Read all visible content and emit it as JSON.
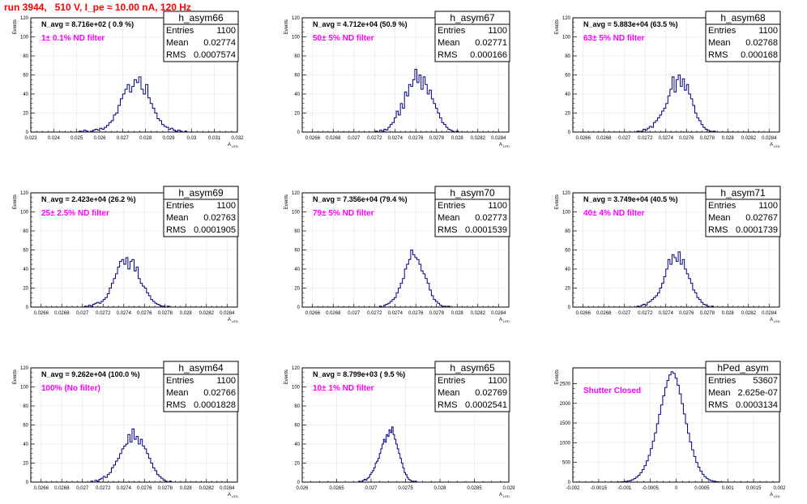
{
  "header": {
    "run_title": "run 3944,   510 V, I_pe ≈ 10.00 nA, 120 Hz"
  },
  "colors": {
    "title": "#ff0000",
    "filter_label": "#ff00ff",
    "hist_line": "#000080",
    "grid": "#c8c8c8"
  },
  "stats_labels": {
    "entries": "Entries",
    "mean": "Mean",
    "rms": "RMS"
  },
  "axis_labels": {
    "y": "Events",
    "x": "A",
    "x_sub": "LED"
  },
  "chart_data": [
    {
      "type": "bar",
      "title": "h_asym66",
      "entries": "1100",
      "mean": "0.02774",
      "rms": "0.0007574",
      "navg": "N_avg = 8.716e+02 ( 0.9 %)",
      "filter": "1± 0.1% ND filter",
      "xlim": [
        0.023,
        0.032
      ],
      "ylim": [
        0,
        120
      ],
      "xticks": [
        0.023,
        0.024,
        0.025,
        0.026,
        0.027,
        0.028,
        0.029,
        0.03,
        0.031,
        0.032
      ],
      "xtick_labels": [
        "0.023",
        "0.024",
        "0.025",
        "0.026",
        "0.027",
        "0.028",
        "0.029",
        "0.03",
        "0.031",
        "0.032"
      ],
      "yticks": [
        0,
        20,
        40,
        60,
        80,
        100,
        120
      ],
      "ytick_labels": [
        "0",
        "20",
        "40",
        "60",
        "80",
        "100",
        "120"
      ],
      "bin_low": 0.0251,
      "bin_width": 0.0001,
      "values": [
        1,
        0,
        2,
        1,
        0,
        1,
        2,
        3,
        2,
        4,
        3,
        5,
        7,
        10,
        12,
        18,
        20,
        28,
        35,
        40,
        45,
        50,
        42,
        48,
        55,
        52,
        58,
        45,
        40,
        50,
        36,
        30,
        25,
        20,
        14,
        12,
        8,
        6,
        5,
        3,
        4,
        2,
        1,
        2,
        1,
        0,
        1
      ]
    },
    {
      "type": "bar",
      "title": "h_asym67",
      "entries": "1100",
      "mean": "0.02771",
      "rms": "0.000166",
      "navg": "N_avg = 4.712e+04 (50.9 %)",
      "filter": "50± 5% ND filter",
      "xlim": [
        0.0265,
        0.0285
      ],
      "ylim": [
        0,
        120
      ],
      "xticks": [
        0.0266,
        0.0268,
        0.027,
        0.0272,
        0.0274,
        0.0276,
        0.0278,
        0.028,
        0.0282,
        0.0284
      ],
      "xtick_labels": [
        "0.0266",
        "0.0268",
        "0.027",
        "0.0272",
        "0.0274",
        "0.0276",
        "0.0278",
        "0.028",
        "0.0282",
        "0.0284"
      ],
      "yticks": [
        0,
        20,
        40,
        60,
        80,
        100,
        120
      ],
      "ytick_labels": [
        "0",
        "20",
        "40",
        "60",
        "80",
        "100",
        "120"
      ],
      "bin_low": 0.02721,
      "bin_width": 2e-05,
      "values": [
        1,
        0,
        2,
        1,
        3,
        2,
        5,
        8,
        10,
        15,
        22,
        18,
        30,
        25,
        42,
        38,
        50,
        48,
        55,
        66,
        52,
        60,
        45,
        58,
        50,
        40,
        44,
        35,
        30,
        25,
        20,
        15,
        10,
        8,
        5,
        3,
        2,
        1,
        0,
        1
      ]
    },
    {
      "type": "bar",
      "title": "h_asym68",
      "entries": "1100",
      "mean": "0.02768",
      "rms": "0.000168",
      "navg": "N_avg = 5.883e+04 (63.5 %)",
      "filter": "63± 5% ND filter",
      "xlim": [
        0.0265,
        0.0285
      ],
      "ylim": [
        0,
        120
      ],
      "xticks": [
        0.0266,
        0.0268,
        0.027,
        0.0272,
        0.0274,
        0.0276,
        0.0278,
        0.028,
        0.0282,
        0.0284
      ],
      "xtick_labels": [
        "0.0266",
        "0.0268",
        "0.027",
        "0.0272",
        "0.0274",
        "0.0276",
        "0.0278",
        "0.028",
        "0.0282",
        "0.0284"
      ],
      "yticks": [
        0,
        20,
        40,
        60,
        80,
        100,
        120
      ],
      "ytick_labels": [
        "0",
        "20",
        "40",
        "60",
        "80",
        "100",
        "120"
      ],
      "bin_low": 0.02712,
      "bin_width": 2e-05,
      "values": [
        1,
        0,
        1,
        3,
        2,
        4,
        6,
        5,
        10,
        12,
        15,
        18,
        22,
        25,
        30,
        38,
        45,
        58,
        42,
        55,
        60,
        48,
        56,
        44,
        50,
        40,
        35,
        28,
        20,
        15,
        12,
        8,
        5,
        3,
        2,
        1,
        0,
        1
      ]
    },
    {
      "type": "bar",
      "title": "h_asym69",
      "entries": "1100",
      "mean": "0.02763",
      "rms": "0.0001905",
      "navg": "N_avg = 2.423e+04 (26.2 %)",
      "filter": "25± 2.5% ND filter",
      "xlim": [
        0.0265,
        0.0285
      ],
      "ylim": [
        0,
        120
      ],
      "xticks": [
        0.0266,
        0.0268,
        0.027,
        0.0272,
        0.0274,
        0.0276,
        0.0278,
        0.028,
        0.0282,
        0.0284
      ],
      "xtick_labels": [
        "0.0266",
        "0.0268",
        "0.027",
        "0.0272",
        "0.0274",
        "0.0276",
        "0.0278",
        "0.028",
        "0.0282",
        "0.0284"
      ],
      "yticks": [
        0,
        20,
        40,
        60,
        80,
        100,
        120
      ],
      "ytick_labels": [
        "0",
        "20",
        "40",
        "60",
        "80",
        "100",
        "120"
      ],
      "bin_low": 0.02702,
      "bin_width": 2e-05,
      "values": [
        1,
        0,
        2,
        1,
        3,
        4,
        5,
        4,
        6,
        8,
        10,
        14,
        20,
        25,
        30,
        35,
        42,
        48,
        50,
        45,
        52,
        40,
        48,
        50,
        38,
        42,
        30,
        25,
        22,
        20,
        15,
        12,
        8,
        6,
        4,
        3,
        2,
        1,
        1,
        0,
        1
      ]
    },
    {
      "type": "bar",
      "title": "h_asym70",
      "entries": "1100",
      "mean": "0.02773",
      "rms": "0.0001539",
      "navg": "N_avg = 7.356e+04 (79.4 %)",
      "filter": "79± 5% ND filter",
      "xlim": [
        0.0265,
        0.0285
      ],
      "ylim": [
        0,
        120
      ],
      "xticks": [
        0.0266,
        0.0268,
        0.027,
        0.0272,
        0.0274,
        0.0276,
        0.0278,
        0.028,
        0.0282,
        0.0284
      ],
      "xtick_labels": [
        "0.0266",
        "0.0268",
        "0.027",
        "0.0272",
        "0.0274",
        "0.0276",
        "0.0278",
        "0.028",
        "0.0282",
        "0.0284"
      ],
      "yticks": [
        0,
        20,
        40,
        60,
        80,
        100,
        120
      ],
      "ytick_labels": [
        "0",
        "20",
        "40",
        "60",
        "80",
        "100",
        "120"
      ],
      "bin_low": 0.02725,
      "bin_width": 2e-05,
      "values": [
        1,
        0,
        2,
        3,
        4,
        6,
        8,
        10,
        15,
        20,
        25,
        30,
        40,
        45,
        50,
        60,
        55,
        52,
        50,
        45,
        38,
        35,
        30,
        25,
        18,
        12,
        8,
        6,
        4,
        2,
        1,
        1,
        0,
        1
      ]
    },
    {
      "type": "bar",
      "title": "h_asym71",
      "entries": "1100",
      "mean": "0.02767",
      "rms": "0.0001739",
      "navg": "N_avg = 3.749e+04 (40.5 %)",
      "filter": "40± 4% ND filter",
      "xlim": [
        0.0265,
        0.0285
      ],
      "ylim": [
        0,
        120
      ],
      "xticks": [
        0.0266,
        0.0268,
        0.027,
        0.0272,
        0.0274,
        0.0276,
        0.0278,
        0.028,
        0.0282,
        0.0284
      ],
      "xtick_labels": [
        "0.0266",
        "0.0268",
        "0.027",
        "0.0272",
        "0.0274",
        "0.0276",
        "0.0278",
        "0.028",
        "0.0282",
        "0.0284"
      ],
      "yticks": [
        0,
        20,
        40,
        60,
        80,
        100,
        120
      ],
      "ytick_labels": [
        "0",
        "20",
        "40",
        "60",
        "80",
        "100",
        "120"
      ],
      "bin_low": 0.02712,
      "bin_width": 2e-05,
      "values": [
        1,
        0,
        2,
        3,
        2,
        5,
        6,
        8,
        10,
        12,
        15,
        20,
        25,
        32,
        40,
        50,
        45,
        55,
        52,
        48,
        58,
        45,
        50,
        40,
        35,
        30,
        25,
        18,
        15,
        10,
        8,
        5,
        3,
        2,
        1,
        0,
        1
      ]
    },
    {
      "type": "bar",
      "title": "h_asym64",
      "entries": "1100",
      "mean": "0.02766",
      "rms": "0.0001828",
      "navg": "N_avg = 9.262e+04 (100.0 %)",
      "filter": "100% (No filter)",
      "xlim": [
        0.0265,
        0.0285
      ],
      "ylim": [
        0,
        120
      ],
      "xticks": [
        0.0266,
        0.0268,
        0.027,
        0.0272,
        0.0274,
        0.0276,
        0.0278,
        0.028,
        0.0282,
        0.0284
      ],
      "xtick_labels": [
        "0.0266",
        "0.0268",
        "0.027",
        "0.0272",
        "0.0274",
        "0.0276",
        "0.0278",
        "0.028",
        "0.0282",
        "0.0284"
      ],
      "yticks": [
        0,
        20,
        40,
        60,
        80,
        100,
        120
      ],
      "ytick_labels": [
        "0",
        "20",
        "40",
        "60",
        "80",
        "100",
        "120"
      ],
      "bin_low": 0.02708,
      "bin_width": 2e-05,
      "values": [
        1,
        0,
        2,
        1,
        3,
        4,
        6,
        5,
        8,
        10,
        15,
        18,
        22,
        25,
        30,
        35,
        38,
        40,
        50,
        42,
        56,
        45,
        48,
        40,
        45,
        38,
        35,
        30,
        25,
        20,
        15,
        12,
        8,
        6,
        4,
        2,
        1,
        0,
        1
      ]
    },
    {
      "type": "bar",
      "title": "h_asym65",
      "entries": "1100",
      "mean": "0.02769",
      "rms": "0.0002541",
      "navg": "N_avg = 8.799e+03 ( 9.5 %)",
      "filter": "10± 1% ND filter",
      "xlim": [
        0.026,
        0.029
      ],
      "ylim": [
        0,
        120
      ],
      "xticks": [
        0.026,
        0.0265,
        0.027,
        0.0275,
        0.028,
        0.0285,
        0.029
      ],
      "xtick_labels": [
        "0.026",
        "0.0265",
        "0.027",
        "0.0275",
        "0.028",
        "0.0285",
        "0.029"
      ],
      "yticks": [
        0,
        20,
        40,
        60,
        80,
        100,
        120
      ],
      "ytick_labels": [
        "0",
        "20",
        "40",
        "60",
        "80",
        "100",
        "120"
      ],
      "bin_low": 0.02682,
      "bin_width": 2e-05,
      "values": [
        1,
        0,
        1,
        2,
        3,
        2,
        4,
        5,
        8,
        10,
        12,
        15,
        20,
        22,
        25,
        30,
        35,
        40,
        45,
        42,
        50,
        48,
        55,
        52,
        58,
        50,
        45,
        40,
        35,
        30,
        25,
        20,
        15,
        10,
        8,
        5,
        3,
        2,
        1,
        1,
        0,
        1
      ]
    },
    {
      "type": "bar",
      "title": "hPed_asym",
      "entries": "53607",
      "mean": "2.625e-07",
      "rms": "0.0003134",
      "navg": "",
      "filter": "Shutter Closed",
      "xlim": [
        -0.002,
        0.002
      ],
      "ylim": [
        0,
        2900
      ],
      "xticks": [
        -0.002,
        -0.0015,
        -0.001,
        -0.0005,
        0,
        0.0005,
        0.001,
        0.0015,
        0.002
      ],
      "xtick_labels": [
        "-0.002",
        "-0.0015",
        "-0.001",
        "-0.0005",
        "0",
        "0.0005",
        "0.001",
        "0.0015",
        "0.002"
      ],
      "yticks": [
        0,
        500,
        1000,
        1500,
        2000,
        2500
      ],
      "ytick_labels": [
        "0",
        "500",
        "1000",
        "1500",
        "2000",
        "2500"
      ],
      "bin_low": -0.00122,
      "bin_width": 4e-05,
      "values": [
        1,
        2,
        3,
        5,
        8,
        12,
        18,
        28,
        42,
        62,
        90,
        128,
        175,
        240,
        320,
        420,
        540,
        680,
        850,
        1040,
        1250,
        1480,
        1720,
        1960,
        2190,
        2400,
        2580,
        2720,
        2800,
        2760,
        2640,
        2460,
        2240,
        1990,
        1730,
        1480,
        1240,
        1020,
        820,
        650,
        500,
        380,
        280,
        200,
        140,
        95,
        62,
        40,
        25,
        15,
        9,
        5,
        3,
        2,
        1
      ]
    }
  ]
}
